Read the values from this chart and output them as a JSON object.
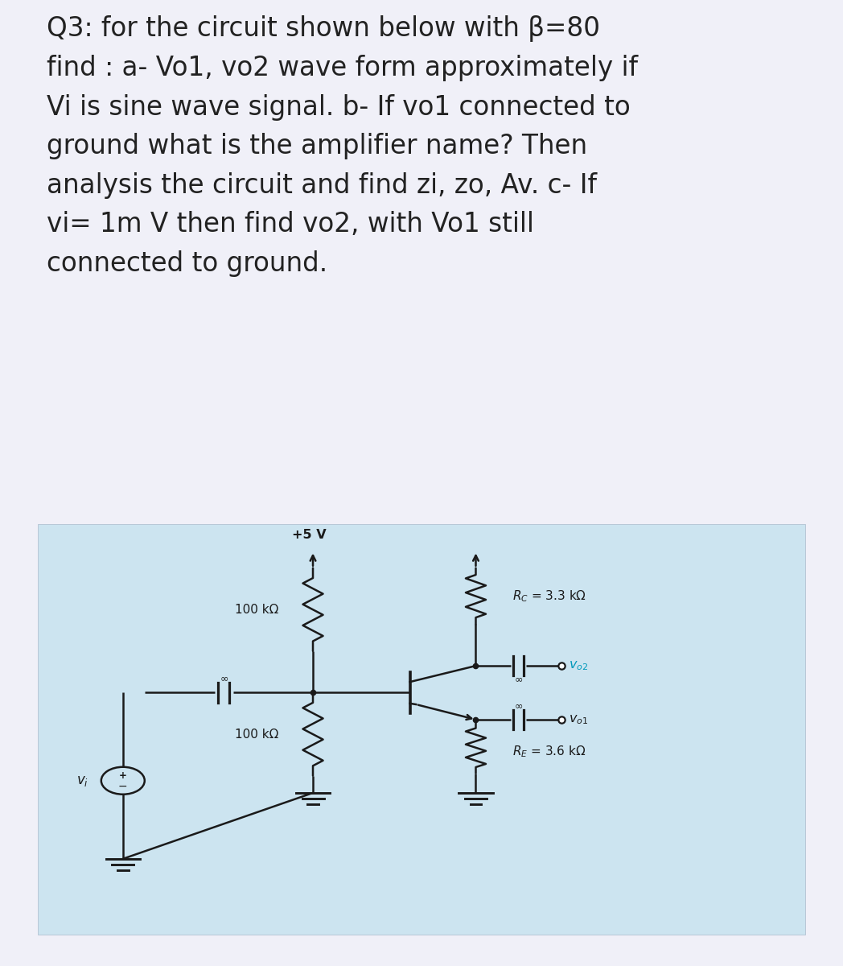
{
  "title_text": "Q3: for the circuit shown below with β=80\nfind : a- Vo1, vo2 wave form approximately if\nVi is sine wave signal. b- If vo1 connected to\nground what is the amplifier name? Then\nanalysis the circuit and find zi, zo, Av. c- If\nvi= 1m V then find vo2, with Vo1 still\nconnected to ground.",
  "title_fontsize": 23.5,
  "title_color": "#222222",
  "bg_color": "#f0f0f8",
  "circuit_bg": "#cce4f0",
  "vcc_label": "+5 V",
  "rc_label": "$R_C$ = 3.3 kΩ",
  "r1_label": "100 kΩ",
  "r2_label": "100 kΩ",
  "re_label": "$R_E$ = 3.6 kΩ",
  "vo2_label": "$v_{o2}$",
  "vo1_label": "$v_{o1}$",
  "vi_label": "$v_i$",
  "line_color": "#1a1a1a",
  "cyan_color": "#0099bb",
  "lw": 1.8
}
